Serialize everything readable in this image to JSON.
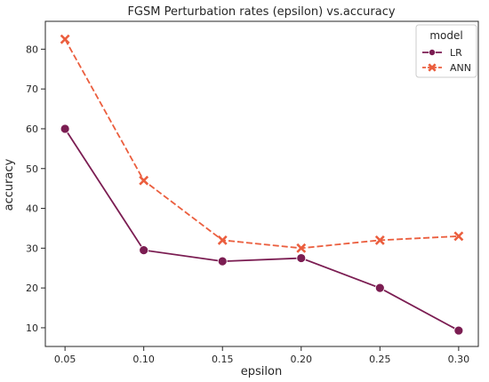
{
  "chart_data": {
    "type": "line",
    "title": "FGSM Perturbation rates (epsilon) vs.accuracy",
    "xlabel": "epsilon",
    "ylabel": "accuracy",
    "x": [
      0.05,
      0.1,
      0.15,
      0.2,
      0.25,
      0.3
    ],
    "x_tick_labels": [
      "0.05",
      "0.10",
      "0.15",
      "0.20",
      "0.25",
      "0.30"
    ],
    "y_ticks": [
      10,
      20,
      30,
      40,
      50,
      60,
      70,
      80
    ],
    "y_tick_labels": [
      "10",
      "20",
      "30",
      "40",
      "50",
      "60",
      "70",
      "80"
    ],
    "xlim": [
      0.0375,
      0.3125
    ],
    "ylim": [
      5.3,
      87.0
    ],
    "grid": false,
    "legend": {
      "title": "model",
      "placement": "top-right"
    },
    "series": [
      {
        "name": "LR",
        "values": [
          60.0,
          29.5,
          26.7,
          27.5,
          20.0,
          9.3
        ],
        "color": "#7b1d52",
        "linestyle": "solid",
        "marker": "circle"
      },
      {
        "name": "ANN",
        "values": [
          82.5,
          47.0,
          32.0,
          30.0,
          32.0,
          33.0
        ],
        "color": "#eb5e3e",
        "linestyle": "dashed",
        "marker": "x"
      }
    ]
  }
}
